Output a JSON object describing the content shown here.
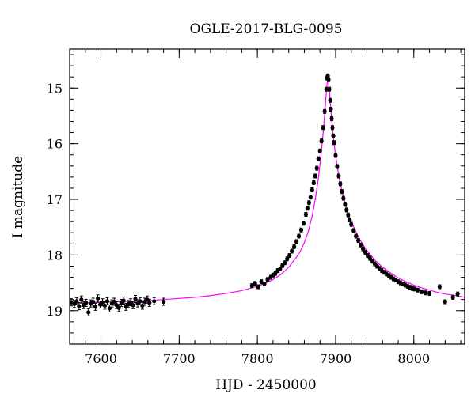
{
  "chart_data": {
    "type": "scatter",
    "title": "OGLE-2017-BLG-0095",
    "xlabel": "HJD - 2450000",
    "ylabel": "I magnitude",
    "xlim": [
      7560,
      8065
    ],
    "ylim": [
      19.6,
      14.3
    ],
    "y_inverted": true,
    "x_major_ticks": [
      7600,
      7700,
      7800,
      7900,
      8000
    ],
    "x_minor_step": 20,
    "y_major_ticks": [
      15,
      16,
      17,
      18,
      19
    ],
    "y_minor_step": 0.2,
    "grid": false,
    "legend": "none",
    "colors": {
      "points": "#000000",
      "model": "#ff00ff",
      "axes": "#000000"
    },
    "series": [
      {
        "kind": "observations",
        "x": [
          7562,
          7566,
          7569,
          7572,
          7575,
          7578,
          7581,
          7584,
          7587,
          7590,
          7593,
          7596,
          7599,
          7602,
          7605,
          7608,
          7611,
          7614,
          7617,
          7620,
          7623,
          7626,
          7629,
          7632,
          7635,
          7638,
          7641,
          7644,
          7647,
          7650,
          7653,
          7656,
          7659,
          7662,
          7668,
          7680,
          7793,
          7797,
          7801,
          7805,
          7809,
          7813,
          7817,
          7820,
          7823,
          7826,
          7829,
          7832,
          7835,
          7838,
          7841,
          7844,
          7847,
          7850,
          7853,
          7856,
          7859,
          7862,
          7864,
          7866,
          7868,
          7870,
          7872,
          7874,
          7876,
          7878,
          7880,
          7882,
          7884,
          7886,
          7888,
          7889,
          7890,
          7891,
          7892,
          7893,
          7894,
          7895,
          7896,
          7897,
          7898,
          7900,
          7902,
          7904,
          7906,
          7908,
          7910,
          7912,
          7914,
          7916,
          7918,
          7920,
          7923,
          7926,
          7929,
          7932,
          7935,
          7938,
          7941,
          7944,
          7947,
          7950,
          7953,
          7956,
          7959,
          7962,
          7965,
          7968,
          7971,
          7974,
          7977,
          7980,
          7983,
          7986,
          7989,
          7992,
          7995,
          7998,
          8001,
          8005,
          8010,
          8015,
          8020,
          8033,
          8040,
          8050,
          8056
        ],
        "y": [
          18.85,
          18.88,
          18.83,
          18.92,
          18.8,
          18.9,
          18.86,
          19.03,
          18.87,
          18.84,
          18.93,
          18.78,
          18.89,
          18.85,
          18.91,
          18.83,
          18.96,
          18.87,
          18.84,
          18.9,
          18.95,
          18.86,
          18.82,
          18.93,
          18.88,
          18.85,
          18.9,
          18.79,
          18.87,
          18.83,
          18.91,
          18.84,
          18.8,
          18.86,
          18.83,
          18.84,
          18.55,
          18.51,
          18.57,
          18.48,
          18.52,
          18.44,
          18.4,
          18.36,
          18.33,
          18.28,
          18.25,
          18.19,
          18.14,
          18.07,
          18.01,
          17.93,
          17.85,
          17.76,
          17.66,
          17.55,
          17.43,
          17.27,
          17.16,
          17.06,
          16.96,
          16.83,
          16.7,
          16.58,
          16.44,
          16.27,
          16.13,
          15.95,
          15.71,
          15.42,
          15.02,
          14.82,
          14.78,
          14.85,
          15.02,
          15.22,
          15.38,
          15.55,
          15.71,
          15.86,
          15.98,
          16.21,
          16.41,
          16.58,
          16.72,
          16.86,
          16.98,
          17.09,
          17.19,
          17.28,
          17.37,
          17.45,
          17.56,
          17.66,
          17.74,
          17.82,
          17.89,
          17.95,
          18.01,
          18.06,
          18.11,
          18.16,
          18.2,
          18.24,
          18.28,
          18.31,
          18.34,
          18.37,
          18.4,
          18.43,
          18.45,
          18.48,
          18.5,
          18.52,
          18.54,
          18.56,
          18.58,
          18.6,
          18.61,
          18.63,
          18.66,
          18.68,
          18.69,
          18.57,
          18.84,
          18.76,
          18.7
        ]
      },
      {
        "kind": "model",
        "x": [
          7560,
          7580,
          7600,
          7620,
          7640,
          7660,
          7680,
          7700,
          7720,
          7740,
          7760,
          7780,
          7800,
          7810,
          7820,
          7830,
          7840,
          7850,
          7855,
          7860,
          7865,
          7870,
          7874,
          7878,
          7881,
          7884,
          7886,
          7888,
          7889,
          7890,
          7891,
          7892,
          7894,
          7896,
          7898,
          7900,
          7903,
          7906,
          7910,
          7915,
          7920,
          7930,
          7940,
          7950,
          7960,
          7970,
          7980,
          7990,
          8000,
          8010,
          8020,
          8030,
          8040,
          8050,
          8065
        ],
        "y": [
          18.86,
          18.86,
          18.85,
          18.84,
          18.83,
          18.82,
          18.8,
          18.78,
          18.76,
          18.73,
          18.69,
          18.64,
          18.56,
          18.51,
          18.44,
          18.35,
          18.22,
          18.04,
          17.93,
          17.78,
          17.58,
          17.3,
          17.0,
          16.62,
          16.25,
          15.82,
          15.48,
          15.09,
          14.93,
          14.81,
          14.88,
          15.05,
          15.4,
          15.73,
          15.99,
          16.21,
          16.49,
          16.72,
          16.96,
          17.21,
          17.4,
          17.7,
          17.92,
          18.09,
          18.22,
          18.32,
          18.41,
          18.48,
          18.54,
          18.59,
          18.63,
          18.67,
          18.7,
          18.72,
          18.76
        ]
      }
    ]
  }
}
